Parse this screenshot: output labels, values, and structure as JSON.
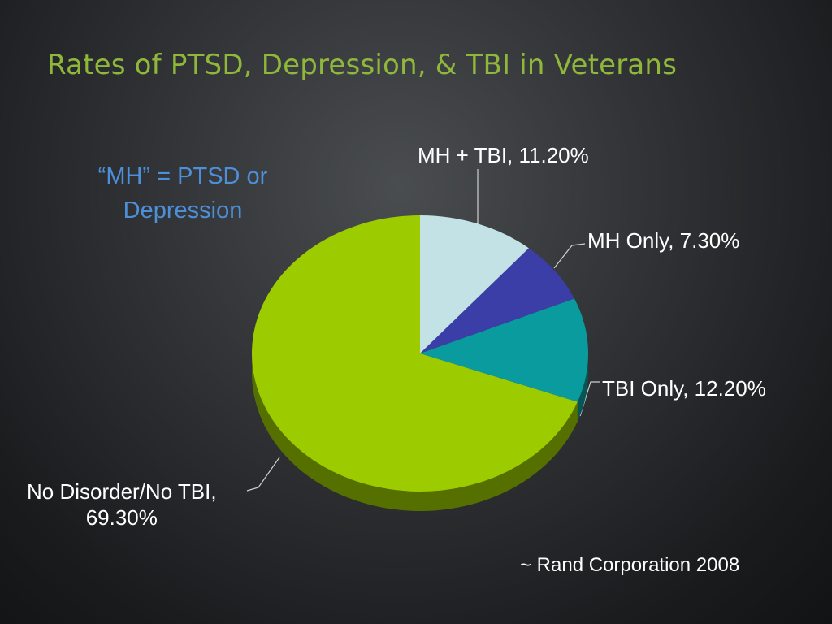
{
  "slide": {
    "title": "Rates of PTSD, Depression, & TBI in Veterans",
    "note": "“MH” = PTSD or Depression",
    "source": "~ Rand Corporation 2008"
  },
  "colors": {
    "title": "#8fb83b",
    "note": "#4d8fd8",
    "slice_colors": [
      "#c3e2e6",
      "#3b3ea6",
      "#0a9b9f",
      "#9ccc00"
    ]
  },
  "chart_data": {
    "type": "pie",
    "style": "3d",
    "start_angle_degrees": 0,
    "direction": "clockwise",
    "slices": [
      {
        "label": "MH + TBI",
        "value": 11.2,
        "display": "MH + TBI, 11.20%"
      },
      {
        "label": "MH Only",
        "value": 7.3,
        "display": "MH Only, 7.30%"
      },
      {
        "label": "TBI Only",
        "value": 12.2,
        "display": "TBI Only, 12.20%"
      },
      {
        "label": "No Disorder/No TBI",
        "value": 69.3,
        "display_line1": "No Disorder/No TBI,",
        "display_line2": "69.30%"
      }
    ]
  }
}
